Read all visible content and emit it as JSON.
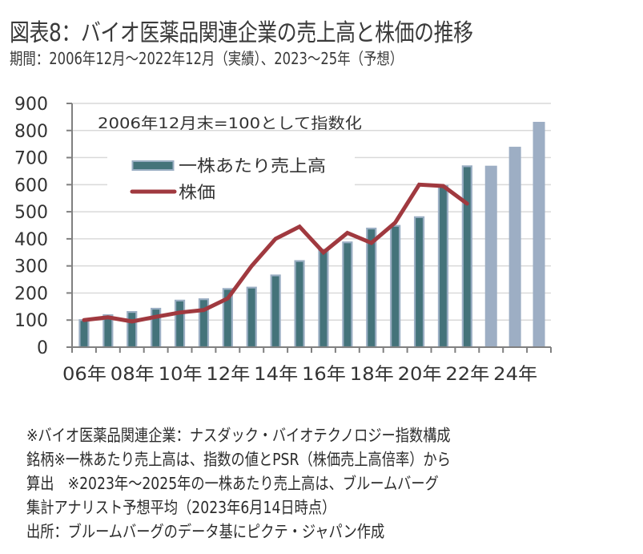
{
  "header": {
    "title": "図表8：バイオ医薬品関連企業の売上高と株価の推移",
    "subtitle": "期間：2006年12月～2022年12月（実績）、2023～25年（予想）"
  },
  "chart_data": {
    "type": "bar",
    "title": "図表8：バイオ医薬品関連企業の売上高と株価の推移",
    "subtitle": "期間：2006年12月～2022年12月（実績）、2023～25年（予想）",
    "annotation": "2006年12月末=100として指数化",
    "xlabel": "",
    "ylabel": "",
    "ylim": [
      0,
      900
    ],
    "yticks": [
      0,
      100,
      200,
      300,
      400,
      500,
      600,
      700,
      800,
      900
    ],
    "grid": true,
    "legend_position": "top-left",
    "categories": [
      "2006",
      "2007",
      "2008",
      "2009",
      "2010",
      "2011",
      "2012",
      "2013",
      "2014",
      "2015",
      "2016",
      "2017",
      "2018",
      "2019",
      "2020",
      "2021",
      "2022",
      "2023",
      "2024",
      "2025"
    ],
    "xtick_labels": [
      "06年",
      "08年",
      "10年",
      "12年",
      "14年",
      "16年",
      "18年",
      "20年",
      "22年",
      "24年"
    ],
    "series": [
      {
        "name": "一株あたり売上高",
        "kind": "bar",
        "color": "#44737a",
        "border_color": "#9aaec3",
        "forecast_color": "#9daec4",
        "forecast_from": "2023",
        "values": [
          100,
          118,
          130,
          142,
          172,
          177,
          215,
          220,
          265,
          318,
          360,
          387,
          438,
          448,
          480,
          595,
          668,
          670,
          740,
          832
        ]
      },
      {
        "name": "株価",
        "kind": "line",
        "color": "#a0393f",
        "values": [
          100,
          110,
          95,
          112,
          128,
          137,
          180,
          300,
          400,
          445,
          350,
          422,
          385,
          460,
          600,
          595,
          530,
          null,
          null,
          null
        ]
      }
    ]
  },
  "notes": [
    "※バイオ医薬品関連企業：ナスダック・バイオテクノロジー指数構成",
    "銘柄※一株あたり売上高は、指数の値とPSR（株価売上高倍率）から",
    "算出　※2023年～2025年の一株あたり売上高は、ブルームバーグ",
    "集計アナリスト予想平均（2023年6月14日時点）",
    "出所：ブルームバーグのデータ基にピクテ・ジャパン作成"
  ]
}
